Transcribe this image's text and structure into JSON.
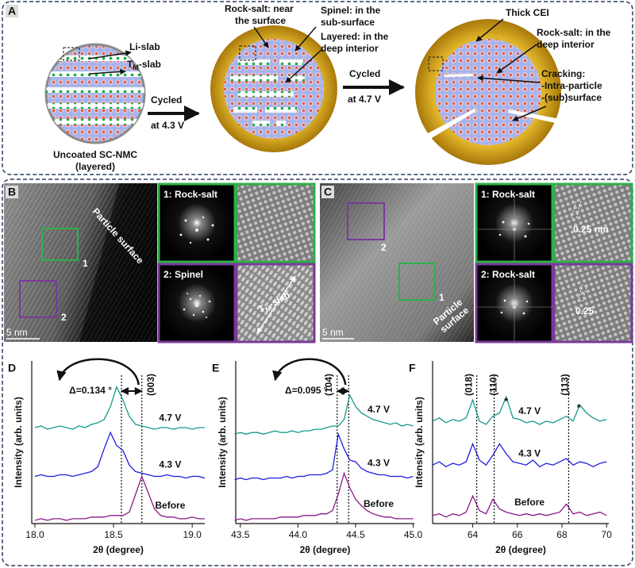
{
  "figure": {
    "A": {
      "label": "A",
      "li_slab": "Li-slab",
      "tm_slab": {
        "base": "T",
        "sub": "M",
        "suffix": "-slab"
      },
      "pristine": [
        "Uncoated SC-NMC",
        "(layered)"
      ],
      "step1": [
        "Cycled",
        "at 4.3 V"
      ],
      "step2": [
        "Cycled",
        "at 4.7 V"
      ],
      "rocksalt_surface": [
        "Rock-salt: near",
        "the surface"
      ],
      "spinel": [
        "Spinel: in the",
        "sub-surface"
      ],
      "layered": [
        "Layered: in the",
        "deep interior"
      ],
      "cei": "Thick CEI",
      "rocksalt_interior": [
        "Rock-salt: in the",
        "deep interior"
      ],
      "cracking": [
        "Cracking:",
        "-Intra-particle",
        "-(sub)surface"
      ]
    },
    "B": {
      "label": "B",
      "surface": "Particle surface",
      "region1": "1",
      "region2": "2",
      "scale": "5 nm",
      "fft1": "1: Rock-salt",
      "fft2": "2: Spinel",
      "tm_slab": {
        "base": "T",
        "sub": "M",
        "suffix": "-slab"
      }
    },
    "C": {
      "label": "C",
      "region2": "2",
      "region1": "1",
      "surface": [
        "Particle",
        "surface"
      ],
      "scale": "5 nm",
      "fft1": "1: Rock-salt",
      "fft2": "2: Rock-salt",
      "d1": "0.25 nm",
      "d2": "0.25"
    }
  },
  "chart_data": [
    {
      "type": "line",
      "panel": "D",
      "xlabel": "2θ (degree)",
      "ylabel": "Intensity (arb. units)",
      "xlim": [
        17.98,
        19.08
      ],
      "ylim": [
        0,
        10
      ],
      "xticks": [
        {
          "value": 18,
          "label": "18.0"
        },
        18.5,
        {
          "value": 19,
          "label": "19.0"
        }
      ],
      "x": [
        18.0,
        18.04,
        18.08,
        18.12,
        18.16,
        18.2,
        18.24,
        18.28,
        18.32,
        18.36,
        18.4,
        18.44,
        18.48,
        18.52,
        18.56,
        18.6,
        18.64,
        18.68,
        18.72,
        18.76,
        18.8,
        18.84,
        18.88,
        18.92,
        18.96,
        19.0,
        19.04,
        19.08
      ],
      "series": [
        {
          "name": "4.7 V",
          "color": "#17998a",
          "values": [
            5.9,
            6.0,
            5.8,
            5.9,
            6.0,
            5.9,
            5.8,
            6.0,
            5.9,
            6.1,
            6.2,
            6.4,
            7.2,
            8.4,
            7.6,
            6.6,
            6.1,
            6.0,
            5.9,
            5.8,
            5.9,
            5.9,
            5.8,
            5.9,
            5.9,
            5.8,
            5.9,
            5.9
          ]
        },
        {
          "name": "4.3 V",
          "color": "#1c1ce0",
          "values": [
            2.9,
            3.0,
            2.9,
            2.9,
            3.0,
            3.0,
            2.9,
            3.0,
            3.1,
            3.2,
            3.5,
            4.6,
            5.6,
            4.8,
            4.5,
            3.6,
            3.2,
            3.1,
            3.0,
            2.9,
            2.9,
            3.0,
            2.9,
            2.9,
            2.8,
            2.9,
            2.9,
            2.8
          ]
        },
        {
          "name": "Before",
          "color": "#8a1a8a",
          "values": [
            0.2,
            0.3,
            0.2,
            0.3,
            0.3,
            0.2,
            0.3,
            0.3,
            0.3,
            0.4,
            0.4,
            0.4,
            0.5,
            0.5,
            0.5,
            0.7,
            1.8,
            2.9,
            1.9,
            0.9,
            0.5,
            0.4,
            0.4,
            0.3,
            0.3,
            0.4,
            0.3,
            0.3
          ]
        }
      ],
      "vlines": [
        18.55,
        18.68
      ],
      "delta": "Δ=0.134 °",
      "peak_labels": [
        {
          "text": "(003)",
          "x": 18.74
        }
      ],
      "markers": []
    },
    {
      "type": "line",
      "panel": "E",
      "xlabel": "2θ (degree)",
      "ylabel": "Intensity (arb. units)",
      "xlim": [
        43.46,
        45.01
      ],
      "ylim": [
        0,
        10
      ],
      "xticks": [
        43.5,
        {
          "value": 44,
          "label": "44.0"
        },
        44.5,
        {
          "value": 45,
          "label": "45.0"
        }
      ],
      "x": [
        43.45,
        43.5,
        43.55,
        43.6,
        43.65,
        43.7,
        43.75,
        43.8,
        43.85,
        43.9,
        43.95,
        44.0,
        44.05,
        44.1,
        44.15,
        44.2,
        44.25,
        44.3,
        44.35,
        44.4,
        44.45,
        44.5,
        44.55,
        44.6,
        44.65,
        44.7,
        44.75,
        44.8,
        44.85,
        44.9,
        44.95,
        45.0
      ],
      "series": [
        {
          "name": "4.7 V",
          "color": "#17998a",
          "values": [
            5.5,
            5.6,
            5.5,
            5.6,
            5.6,
            5.5,
            5.6,
            5.7,
            5.6,
            5.6,
            5.7,
            5.6,
            5.7,
            5.7,
            5.8,
            5.8,
            5.9,
            6.0,
            6.0,
            6.4,
            7.9,
            7.2,
            6.8,
            6.6,
            6.4,
            6.3,
            6.2,
            6.1,
            6.2,
            6.0,
            6.1,
            6.0
          ]
        },
        {
          "name": "4.3 V",
          "color": "#1c1ce0",
          "values": [
            2.7,
            2.8,
            2.7,
            2.8,
            2.8,
            2.7,
            2.8,
            2.8,
            2.8,
            2.9,
            2.8,
            2.9,
            2.9,
            3.0,
            3.0,
            3.0,
            3.1,
            3.3,
            5.5,
            4.6,
            3.9,
            3.8,
            3.4,
            3.2,
            3.1,
            3.0,
            3.0,
            2.9,
            2.9,
            2.9,
            2.8,
            2.9
          ]
        },
        {
          "name": "Before",
          "color": "#8a1a8a",
          "values": [
            0.2,
            0.3,
            0.2,
            0.3,
            0.3,
            0.3,
            0.3,
            0.3,
            0.4,
            0.4,
            0.4,
            0.4,
            0.5,
            0.5,
            0.5,
            0.6,
            0.6,
            0.8,
            1.8,
            3.1,
            2.2,
            1.5,
            1.1,
            0.8,
            0.6,
            0.5,
            0.4,
            0.4,
            0.3,
            0.3,
            0.3,
            0.3
          ]
        }
      ],
      "vlines": [
        44.34,
        44.44
      ],
      "delta": "Δ=0.095 °",
      "peak_labels": [
        {
          "text": "(104)",
          "x": 44.27
        }
      ],
      "markers": []
    },
    {
      "type": "line",
      "panel": "F",
      "xlabel": "2θ (degree)",
      "ylabel": "Intensity (arb. units)",
      "xlim": [
        62.2,
        70.1
      ],
      "ylim": [
        0,
        10
      ],
      "xticks": [
        64,
        66,
        68,
        70
      ],
      "x": [
        62.2,
        62.5,
        62.8,
        63.1,
        63.4,
        63.7,
        64.0,
        64.3,
        64.6,
        64.9,
        65.2,
        65.5,
        65.8,
        66.1,
        66.4,
        66.7,
        67.0,
        67.3,
        67.6,
        67.9,
        68.2,
        68.5,
        68.8,
        69.1,
        69.4,
        69.7,
        70.0
      ],
      "series": [
        {
          "name": "4.7 V",
          "color": "#17998a",
          "values": [
            6.3,
            6.5,
            6.2,
            6.4,
            6.3,
            6.5,
            7.6,
            6.3,
            6.1,
            6.6,
            6.8,
            7.8,
            6.5,
            6.4,
            6.2,
            6.3,
            6.1,
            6.3,
            6.2,
            6.4,
            6.6,
            6.3,
            7.3,
            6.8,
            6.5,
            6.3,
            6.4
          ]
        },
        {
          "name": "4.3 V",
          "color": "#1c1ce0",
          "values": [
            3.6,
            3.8,
            3.5,
            3.7,
            3.6,
            3.8,
            4.9,
            3.9,
            3.6,
            4.2,
            4.9,
            4.3,
            3.8,
            3.7,
            3.6,
            3.9,
            3.5,
            3.7,
            3.6,
            3.8,
            4.0,
            3.6,
            3.8,
            3.7,
            3.5,
            3.7,
            3.8
          ]
        },
        {
          "name": "Before",
          "color": "#8a1a8a",
          "values": [
            0.5,
            0.6,
            0.4,
            0.6,
            0.5,
            0.7,
            1.7,
            0.8,
            0.6,
            1.5,
            0.9,
            0.7,
            0.6,
            0.5,
            0.6,
            0.5,
            0.6,
            0.5,
            0.6,
            0.7,
            1.2,
            0.6,
            0.7,
            0.5,
            0.6,
            0.7,
            0.5
          ]
        }
      ],
      "vlines": [
        64.18,
        64.96,
        68.3
      ],
      "peak_labels": [
        {
          "text": "(018)",
          "x": 63.85
        },
        {
          "text": "(110)",
          "x": 64.95
        },
        {
          "text": "(113)",
          "x": 68.15
        }
      ],
      "markers": [
        {
          "text": "*",
          "x": 65.5
        },
        {
          "text": "*",
          "x": 68.75
        }
      ]
    }
  ]
}
